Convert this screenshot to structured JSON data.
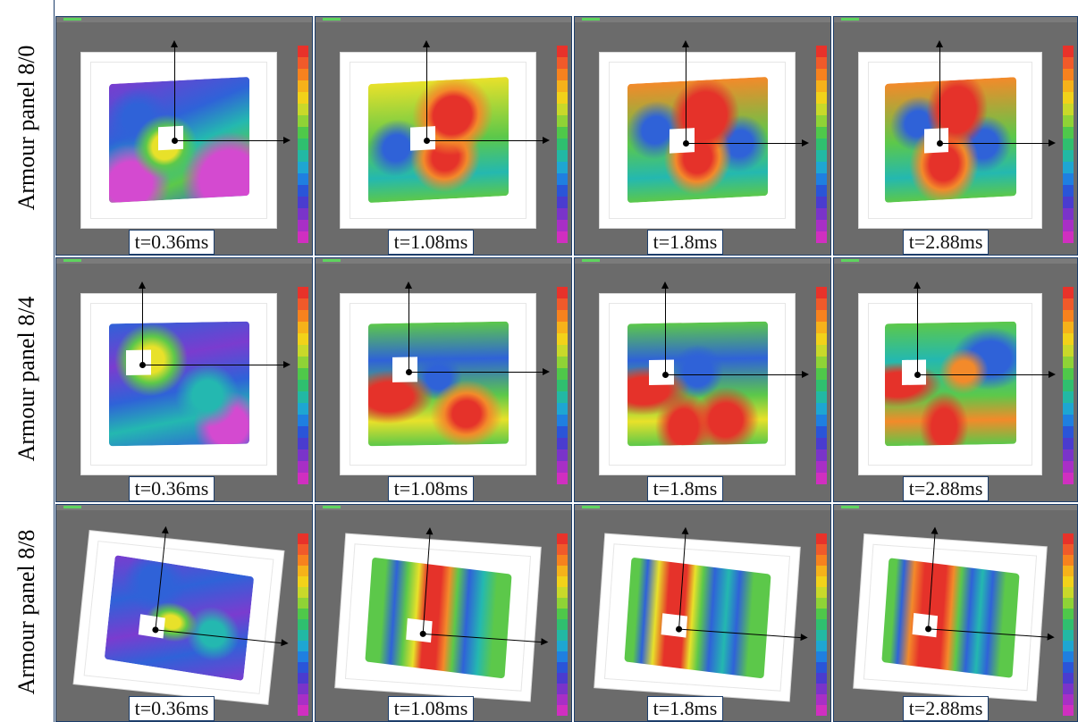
{
  "rows": [
    {
      "label": "Armour panel 8/0",
      "label_html": "Armour panel8/0"
    },
    {
      "label": "Armour    panel    8/4"
    },
    {
      "label": "Armour    panel    8/8"
    }
  ],
  "times": [
    "t=0.36ms",
    "t=1.08ms",
    "t=1.8ms",
    "t=2.88ms"
  ],
  "colorbar_colors": [
    "#e8322a",
    "#f05a2a",
    "#f7821e",
    "#f6b21a",
    "#f2d21a",
    "#c9d92a",
    "#8fd336",
    "#4fc84a",
    "#2fbf6f",
    "#22b8a4",
    "#1ea6d2",
    "#1f7fe0",
    "#2a55d8",
    "#4a3ccf",
    "#7a34c9",
    "#a82fc6",
    "#d02fc0"
  ],
  "field_colors": {
    "red": "#e5322a",
    "orange": "#f38a2a",
    "yellow": "#e8e12a",
    "green": "#5cc84a",
    "cyan": "#24b8b0",
    "blue": "#2f62d8",
    "purple": "#7a3ccf",
    "magenta": "#d44ad0"
  }
}
